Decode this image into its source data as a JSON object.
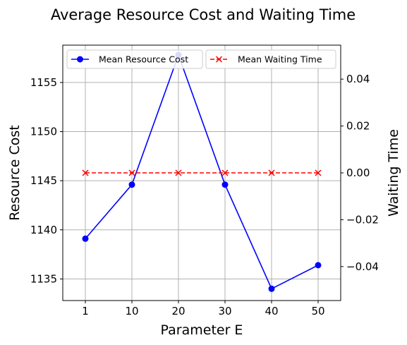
{
  "chart_data": {
    "type": "line",
    "title": "Average Resource Cost and Waiting Time",
    "xlabel": "Parameter E",
    "ylabel_left": "Resource Cost",
    "ylabel_right": "Waiting Time",
    "categories": [
      "1",
      "10",
      "20",
      "30",
      "40",
      "50"
    ],
    "y_left_ticks": [
      1135,
      1140,
      1145,
      1150,
      1155
    ],
    "y_left_lim": [
      1132.8,
      1158.8
    ],
    "y_right_ticks": [
      "0.04",
      "0.02",
      "0.00",
      "−0.02",
      "−0.04"
    ],
    "y_right_tick_values": [
      0.04,
      0.02,
      0.0,
      -0.02,
      -0.04
    ],
    "y_right_lim": [
      -0.0545,
      0.0545
    ],
    "grid": true,
    "series": [
      {
        "name": "Mean Resource Cost",
        "axis": "left",
        "color": "#0000ff",
        "line_style": "solid",
        "marker": "circle",
        "values": [
          1139.1,
          1144.6,
          1157.8,
          1144.6,
          1134.0,
          1136.4
        ]
      },
      {
        "name": "Mean Waiting Time",
        "axis": "right",
        "color": "#ff0000",
        "line_style": "dashed",
        "marker": "x",
        "values": [
          0,
          0,
          0,
          0,
          0,
          0
        ]
      }
    ],
    "legend": [
      {
        "label": "Mean Resource Cost",
        "placement": "upper-left"
      },
      {
        "label": "Mean Waiting Time",
        "placement": "upper-right"
      }
    ]
  }
}
